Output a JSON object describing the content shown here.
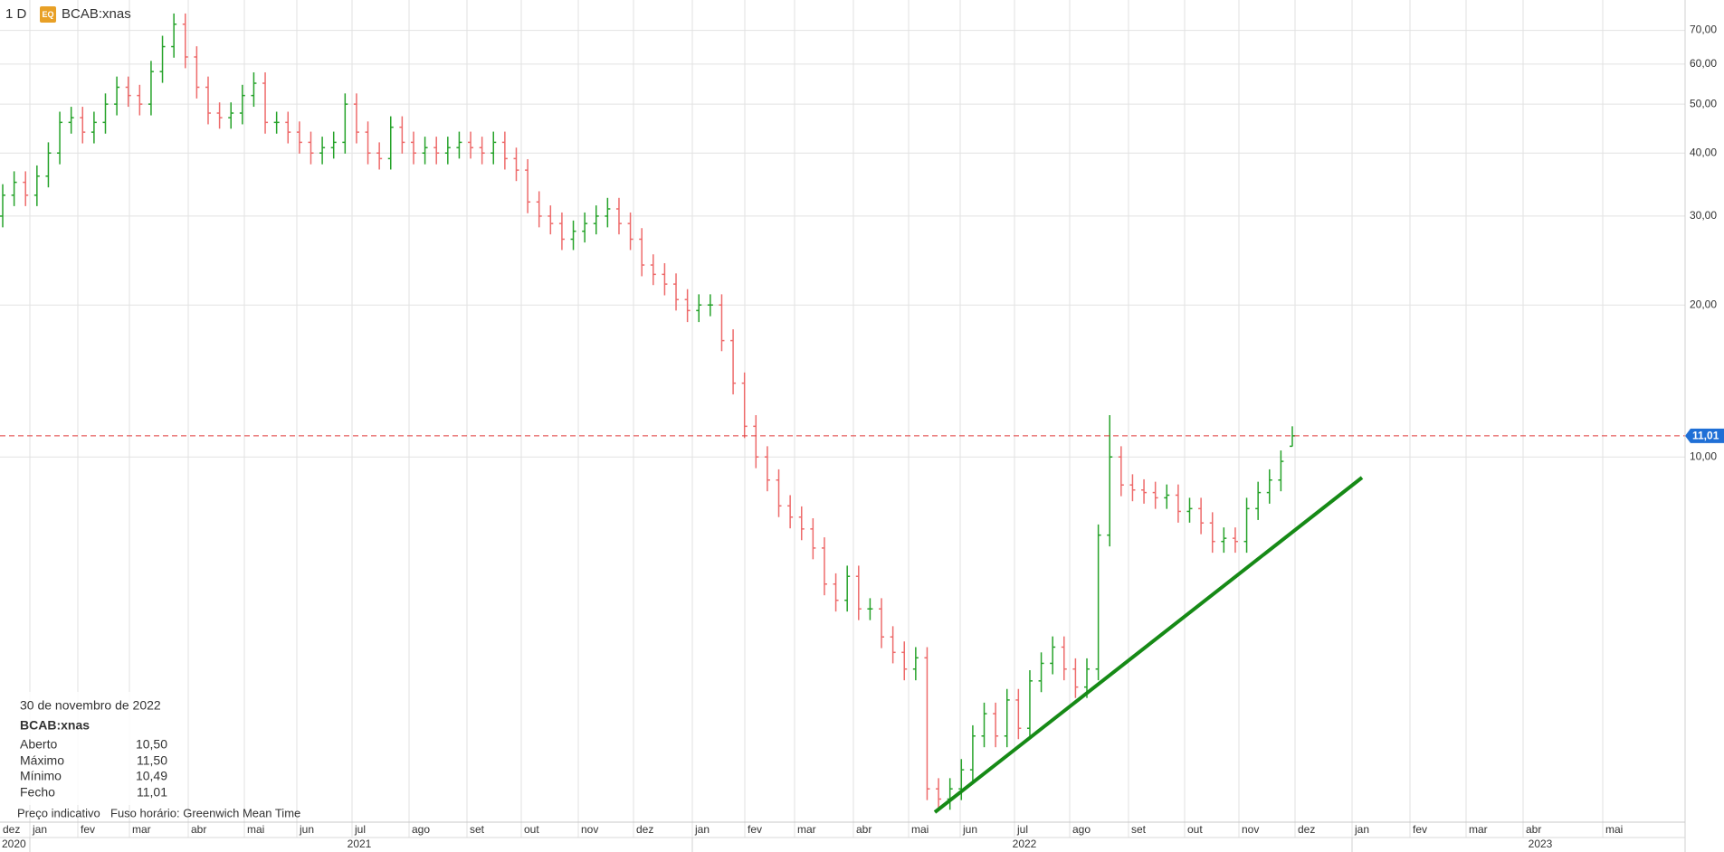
{
  "chart_data": {
    "type": "ohlc",
    "interval": "1 D",
    "badge": "EQ",
    "title": "BCAB:xnas",
    "log_scale": true,
    "grid": true,
    "up_color": "#26a32a",
    "down_color": "#ee6b6b",
    "ylim": [
      1.89,
      80.4
    ],
    "yticks": [
      {
        "value": 10,
        "label": "10,00"
      },
      {
        "value": 20,
        "label": "20,00"
      },
      {
        "value": 30,
        "label": "30,00"
      },
      {
        "value": 40,
        "label": "40,00"
      },
      {
        "value": 50,
        "label": "50,00"
      },
      {
        "value": 60,
        "label": "60,00"
      },
      {
        "value": 70,
        "label": "70,00"
      }
    ],
    "months": [
      "dez",
      "jan",
      "fev",
      "mar",
      "abr",
      "mai",
      "jun",
      "jul",
      "ago",
      "set",
      "out",
      "nov",
      "dez",
      "jan",
      "fev",
      "mar",
      "abr",
      "mai",
      "jun",
      "jul",
      "ago",
      "set",
      "out",
      "nov",
      "dez",
      "jan",
      "fev",
      "mar",
      "abr",
      "mai"
    ],
    "years": [
      "2020",
      "2021",
      "2022",
      "2023"
    ],
    "open": [
      30,
      33,
      35,
      33,
      36,
      40,
      46,
      47,
      44,
      46,
      50,
      54,
      52,
      50,
      58,
      65,
      72,
      62,
      54,
      48,
      47,
      48,
      52,
      55,
      46,
      46,
      44,
      42,
      40,
      41,
      42,
      50,
      44,
      40,
      39,
      45,
      42,
      40,
      41,
      40,
      41,
      42,
      41,
      40,
      42,
      39,
      37,
      32,
      30,
      29,
      27,
      28,
      29,
      30,
      31,
      29,
      27,
      24,
      23,
      22,
      20.5,
      19.5,
      20,
      20,
      17,
      14,
      11.5,
      10,
      9,
      8,
      7.6,
      7.2,
      6.6,
      5.6,
      5.2,
      5.8,
      5,
      5,
      4.4,
      4.1,
      3.8,
      4,
      2.2,
      2.1,
      2.2,
      2.4,
      2.8,
      3.1,
      2.8,
      3.3,
      2.9,
      3.6,
      3.9,
      4.2,
      3.8,
      3.5,
      3.8,
      7,
      10,
      8.8,
      8.6,
      8.5,
      8.3,
      8.4,
      7.8,
      7.9,
      7.4,
      6.8,
      6.9,
      6.8,
      7.9,
      8.5,
      9,
      10.5
    ],
    "high": [
      34.7,
      36.8,
      36.8,
      37.8,
      42,
      48.3,
      49.4,
      49.4,
      48.3,
      52.5,
      56.7,
      56.7,
      54.6,
      60.9,
      68.3,
      75.6,
      75.6,
      65.1,
      56.7,
      50.4,
      50.4,
      54.6,
      57.8,
      57.8,
      48.3,
      48.3,
      46.2,
      44.1,
      43.1,
      44.1,
      52.5,
      52.5,
      46.2,
      42,
      47.3,
      47.3,
      44.1,
      43.1,
      43.1,
      43.1,
      44.1,
      44.1,
      43.1,
      44.1,
      44.1,
      41,
      38.9,
      33.6,
      31.5,
      30.5,
      29.4,
      30.5,
      31.5,
      32.6,
      32.6,
      30.5,
      28.4,
      25.2,
      24.2,
      23.1,
      21.5,
      21,
      21,
      21,
      17.9,
      14.7,
      12.1,
      10.5,
      9.45,
      8.4,
      7.98,
      7.56,
      6.93,
      5.88,
      6.09,
      6.09,
      5.25,
      5.25,
      4.62,
      4.31,
      4.2,
      4.2,
      2.31,
      2.31,
      2.52,
      2.94,
      3.26,
      3.26,
      3.47,
      3.47,
      3.78,
      4.1,
      4.41,
      4.41,
      3.99,
      3.99,
      7.35,
      12.1,
      10.5,
      9.24,
      9.03,
      8.93,
      8.82,
      8.82,
      8.3,
      8.3,
      7.77,
      7.25,
      7.25,
      8.3,
      8.93,
      9.45,
      10.3,
      11.5
    ],
    "low": [
      28.5,
      31.4,
      31.4,
      31.4,
      34.2,
      38,
      43.7,
      41.8,
      41.8,
      43.7,
      47.5,
      49.4,
      47.5,
      47.5,
      55.1,
      61.8,
      58.9,
      51.3,
      45.6,
      44.7,
      44.7,
      45.6,
      49.4,
      43.7,
      43.7,
      41.8,
      39.9,
      38,
      38,
      39,
      39.9,
      41.8,
      38,
      37.1,
      37.1,
      39.9,
      38,
      38,
      38,
      38,
      39,
      39,
      38,
      38,
      37.1,
      35.2,
      30.4,
      28.5,
      27.6,
      25.7,
      25.7,
      26.6,
      27.6,
      28.5,
      27.6,
      25.7,
      22.8,
      21.9,
      20.9,
      19.5,
      18.5,
      18.5,
      19,
      16.2,
      13.3,
      10.9,
      9.5,
      8.55,
      7.6,
      7.22,
      6.84,
      6.27,
      5.32,
      4.94,
      4.94,
      4.75,
      4.75,
      4.18,
      3.9,
      3.61,
      3.61,
      2.09,
      2,
      2,
      2.09,
      2.28,
      2.66,
      2.66,
      2.66,
      2.76,
      2.76,
      3.42,
      3.71,
      3.61,
      3.33,
      3.33,
      3.61,
      6.65,
      8.36,
      8.17,
      8.08,
      7.89,
      7.89,
      7.41,
      7.41,
      7.03,
      6.46,
      6.46,
      6.46,
      6.46,
      7.5,
      8.08,
      8.55,
      10.49
    ],
    "close": [
      33,
      35,
      33,
      36,
      40,
      46,
      47,
      44,
      46,
      50,
      54,
      52,
      50,
      58,
      65,
      72,
      62,
      54,
      48,
      47,
      48,
      52,
      55,
      46,
      46,
      44,
      42,
      40,
      41,
      42,
      50,
      44,
      40,
      39,
      45,
      42,
      40,
      41,
      40,
      41,
      42,
      41,
      40,
      42,
      39,
      37,
      32,
      30,
      29,
      27,
      28,
      29,
      30,
      31,
      29,
      27,
      24,
      23,
      22,
      20.5,
      19.5,
      20,
      20,
      17,
      14,
      11.5,
      10,
      9,
      8,
      7.6,
      7.2,
      6.6,
      5.6,
      5.2,
      5.8,
      5,
      5,
      4.4,
      4.1,
      3.8,
      4,
      2.2,
      2.1,
      2.2,
      2.4,
      2.8,
      3.1,
      2.8,
      3.3,
      2.9,
      3.6,
      3.9,
      4.2,
      3.8,
      3.5,
      3.8,
      7,
      10,
      8.8,
      8.6,
      8.5,
      8.3,
      8.4,
      7.8,
      7.9,
      7.4,
      6.8,
      6.9,
      6.8,
      7.9,
      8.5,
      9,
      9.8,
      11.01
    ],
    "current_price": {
      "value": 11.01,
      "label": "11,01",
      "color": "#e03c3c"
    },
    "tooltip": {
      "date": "30 de novembro de 2022",
      "symbol": "BCAB:xnas",
      "rows": [
        [
          "Aberto",
          "10,50"
        ],
        [
          "Máximo",
          "11,50"
        ],
        [
          "Mínimo",
          "10,49"
        ],
        [
          "Fecho",
          "11,01"
        ]
      ]
    },
    "footer": {
      "note": "Preço indicativo",
      "timezone": "Fuso horário: Greenwich Mean Time"
    }
  }
}
